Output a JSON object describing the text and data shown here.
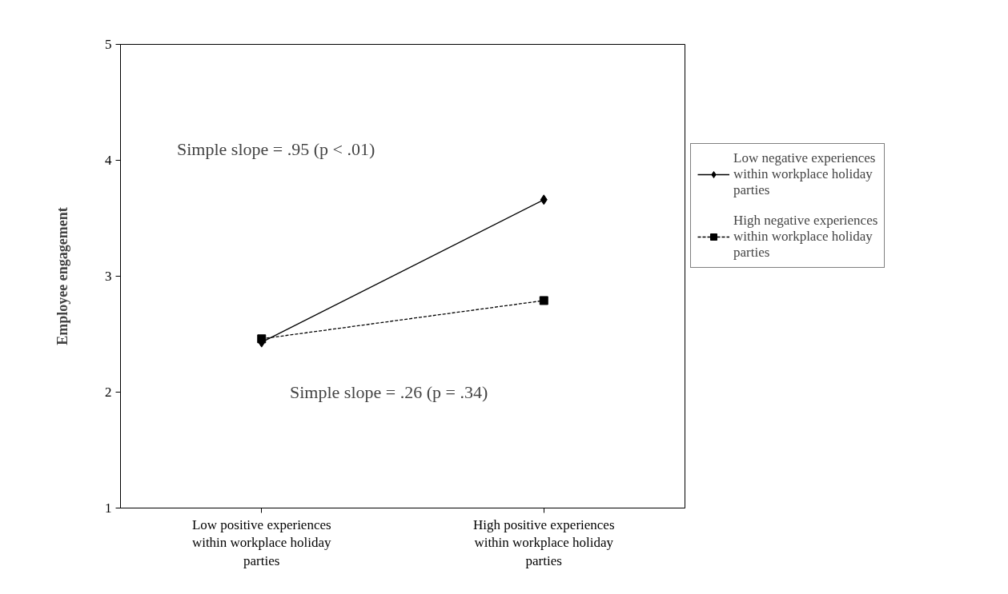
{
  "chart_data": {
    "type": "line",
    "ylabel": "Employee engagement",
    "categories": [
      "Low positive experiences within workplace holiday parties",
      "High positive experiences within workplace holiday parties"
    ],
    "series": [
      {
        "name": "Low negative experiences within workplace holiday parties",
        "color": "#000000",
        "values": [
          2.43,
          3.66
        ],
        "marker": "diamond",
        "line_style": "solid"
      },
      {
        "name": "High negative experiences within workplace holiday parties",
        "color": "#000000",
        "values": [
          2.46,
          2.79
        ],
        "marker": "square",
        "line_style": "dashed"
      }
    ],
    "ylim": [
      1,
      5
    ],
    "yticks": [
      1,
      2,
      3,
      4,
      5
    ],
    "grid": false,
    "legend": "right",
    "annotations": [
      "Simple slope = .95 (p < .01)",
      "Simple slope = .26 (p = .34)"
    ]
  }
}
